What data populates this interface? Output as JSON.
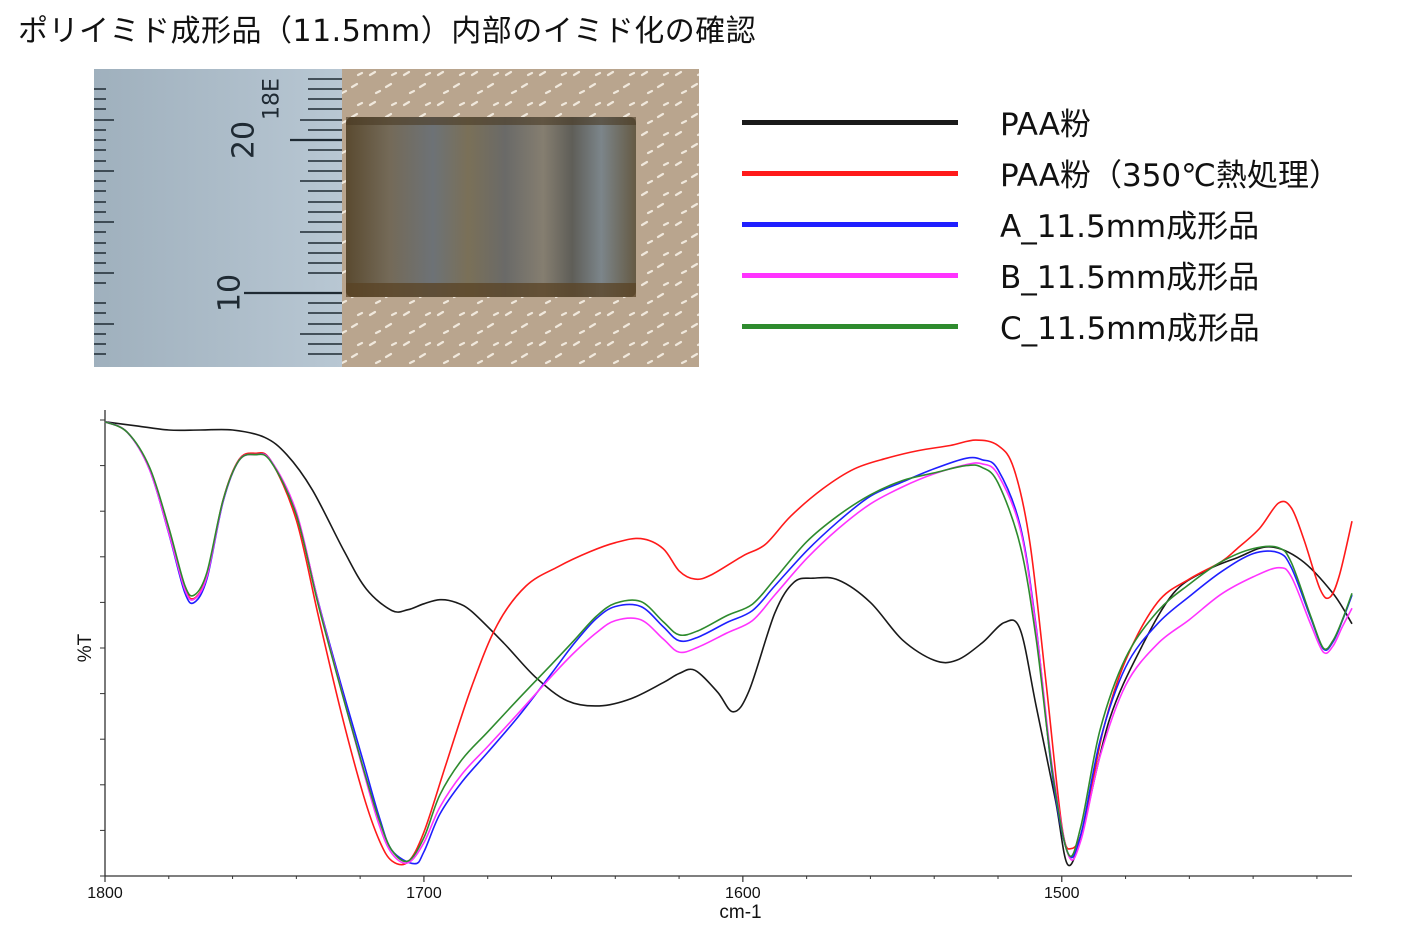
{
  "title": "ポリイミド成形品（11.5mm）内部のイミド化の確認",
  "photo": {
    "ruler_labels": [
      "20",
      "10"
    ],
    "ruler_mark": "18E"
  },
  "legend": [
    {
      "label": "PAA粉",
      "color": "#1a1a1a"
    },
    {
      "label": "PAA粉（350℃熱処理）",
      "color": "#ff1a1a"
    },
    {
      "label": "A_11.5mm成形品",
      "color": "#1f1fff"
    },
    {
      "label": "B_11.5mm成形品",
      "color": "#ff33ff"
    },
    {
      "label": "C_11.5mm成形品",
      "color": "#2e8b2e"
    }
  ],
  "chart_data": {
    "type": "line",
    "xlabel": "cm-1",
    "ylabel": "%T",
    "xlim": [
      1800,
      1409
    ],
    "ylim": [
      0,
      100
    ],
    "x_reversed": true,
    "x_ticks": [
      1800,
      1700,
      1600,
      1500
    ],
    "grid": false,
    "series": [
      {
        "name": "PAA粉",
        "color": "#1a1a1a",
        "points": [
          [
            1800,
            99.6
          ],
          [
            1790,
            98.7
          ],
          [
            1780,
            97.8
          ],
          [
            1770,
            97.8
          ],
          [
            1760,
            97.8
          ],
          [
            1750,
            96.2
          ],
          [
            1743,
            92.4
          ],
          [
            1735,
            84.7
          ],
          [
            1725,
            71.2
          ],
          [
            1718,
            62.9
          ],
          [
            1710,
            58.2
          ],
          [
            1705,
            58.4
          ],
          [
            1700,
            59.7
          ],
          [
            1695,
            60.6
          ],
          [
            1690,
            60.0
          ],
          [
            1685,
            58.0
          ],
          [
            1675,
            51.1
          ],
          [
            1665,
            43.6
          ],
          [
            1655,
            38.4
          ],
          [
            1645,
            37.3
          ],
          [
            1635,
            38.9
          ],
          [
            1625,
            42.4
          ],
          [
            1620,
            44.4
          ],
          [
            1615,
            45.1
          ],
          [
            1608,
            40.4
          ],
          [
            1603,
            36.0
          ],
          [
            1598,
            40.7
          ],
          [
            1590,
            57.6
          ],
          [
            1584,
            64.4
          ],
          [
            1578,
            65.3
          ],
          [
            1570,
            64.9
          ],
          [
            1560,
            60.0
          ],
          [
            1550,
            51.8
          ],
          [
            1540,
            47.3
          ],
          [
            1533,
            47.3
          ],
          [
            1525,
            51.1
          ],
          [
            1518,
            55.6
          ],
          [
            1513,
            54.0
          ],
          [
            1508,
            37.1
          ],
          [
            1502,
            16.7
          ],
          [
            1498,
            2.4
          ],
          [
            1493,
            11.6
          ],
          [
            1485,
            34.4
          ],
          [
            1475,
            50.2
          ],
          [
            1465,
            62.0
          ],
          [
            1455,
            66.9
          ],
          [
            1445,
            69.8
          ],
          [
            1435,
            72.2
          ],
          [
            1425,
            69.3
          ],
          [
            1415,
            62.0
          ],
          [
            1409,
            55.3
          ]
        ]
      },
      {
        "name": "PAA粉（350℃熱処理）",
        "color": "#ff1a1a",
        "points": [
          [
            1800,
            99.6
          ],
          [
            1793,
            97.3
          ],
          [
            1786,
            89.3
          ],
          [
            1780,
            76.2
          ],
          [
            1775,
            63.3
          ],
          [
            1772,
            60.9
          ],
          [
            1768,
            66.0
          ],
          [
            1763,
            82.4
          ],
          [
            1758,
            91.3
          ],
          [
            1753,
            92.7
          ],
          [
            1748,
            91.1
          ],
          [
            1740,
            78.0
          ],
          [
            1733,
            56.7
          ],
          [
            1726,
            36.0
          ],
          [
            1719,
            17.8
          ],
          [
            1714,
            7.8
          ],
          [
            1710,
            3.3
          ],
          [
            1705,
            3.1
          ],
          [
            1700,
            9.6
          ],
          [
            1693,
            24.7
          ],
          [
            1685,
            41.6
          ],
          [
            1677,
            55.1
          ],
          [
            1668,
            63.6
          ],
          [
            1658,
            67.8
          ],
          [
            1648,
            71.1
          ],
          [
            1640,
            73.1
          ],
          [
            1632,
            74.0
          ],
          [
            1625,
            71.8
          ],
          [
            1620,
            66.9
          ],
          [
            1615,
            65.1
          ],
          [
            1610,
            66.0
          ],
          [
            1600,
            70.2
          ],
          [
            1593,
            72.7
          ],
          [
            1585,
            78.9
          ],
          [
            1575,
            84.9
          ],
          [
            1565,
            89.3
          ],
          [
            1555,
            91.6
          ],
          [
            1545,
            93.3
          ],
          [
            1535,
            94.4
          ],
          [
            1527,
            95.6
          ],
          [
            1520,
            94.4
          ],
          [
            1515,
            89.3
          ],
          [
            1510,
            73.1
          ],
          [
            1505,
            42.9
          ],
          [
            1500,
            11.1
          ],
          [
            1497,
            6.0
          ],
          [
            1493,
            11.3
          ],
          [
            1487,
            32.0
          ],
          [
            1480,
            47.3
          ],
          [
            1470,
            60.0
          ],
          [
            1460,
            65.1
          ],
          [
            1450,
            68.9
          ],
          [
            1445,
            71.8
          ],
          [
            1438,
            76.2
          ],
          [
            1432,
            81.8
          ],
          [
            1428,
            80.7
          ],
          [
            1424,
            73.6
          ],
          [
            1419,
            62.9
          ],
          [
            1416,
            61.1
          ],
          [
            1413,
            65.8
          ],
          [
            1409,
            77.8
          ]
        ]
      },
      {
        "name": "A_11.5mm成形品",
        "color": "#1f1fff",
        "points": [
          [
            1800,
            99.6
          ],
          [
            1793,
            97.3
          ],
          [
            1786,
            89.1
          ],
          [
            1780,
            75.1
          ],
          [
            1775,
            62.2
          ],
          [
            1772,
            60.0
          ],
          [
            1768,
            65.3
          ],
          [
            1763,
            82.0
          ],
          [
            1758,
            91.1
          ],
          [
            1753,
            92.4
          ],
          [
            1748,
            91.1
          ],
          [
            1740,
            79.3
          ],
          [
            1733,
            59.8
          ],
          [
            1726,
            42.0
          ],
          [
            1719,
            25.1
          ],
          [
            1714,
            12.9
          ],
          [
            1710,
            5.6
          ],
          [
            1703,
            2.7
          ],
          [
            1700,
            5.3
          ],
          [
            1695,
            13.6
          ],
          [
            1688,
            20.7
          ],
          [
            1680,
            27.1
          ],
          [
            1670,
            35.3
          ],
          [
            1660,
            44.4
          ],
          [
            1653,
            50.9
          ],
          [
            1646,
            56.4
          ],
          [
            1640,
            59.1
          ],
          [
            1632,
            59.1
          ],
          [
            1625,
            54.7
          ],
          [
            1620,
            51.6
          ],
          [
            1614,
            52.4
          ],
          [
            1605,
            55.6
          ],
          [
            1597,
            58.2
          ],
          [
            1590,
            63.6
          ],
          [
            1580,
            71.3
          ],
          [
            1570,
            77.8
          ],
          [
            1560,
            83.3
          ],
          [
            1550,
            86.4
          ],
          [
            1540,
            89.3
          ],
          [
            1530,
            91.6
          ],
          [
            1525,
            91.3
          ],
          [
            1520,
            89.1
          ],
          [
            1513,
            76.7
          ],
          [
            1508,
            54.4
          ],
          [
            1503,
            22.4
          ],
          [
            1498,
            4.9
          ],
          [
            1494,
            9.1
          ],
          [
            1488,
            29.6
          ],
          [
            1480,
            45.8
          ],
          [
            1470,
            55.3
          ],
          [
            1460,
            61.3
          ],
          [
            1450,
            66.7
          ],
          [
            1440,
            70.7
          ],
          [
            1432,
            70.9
          ],
          [
            1428,
            67.6
          ],
          [
            1422,
            56.7
          ],
          [
            1418,
            49.8
          ],
          [
            1415,
            51.3
          ],
          [
            1412,
            56.0
          ],
          [
            1409,
            61.6
          ]
        ]
      },
      {
        "name": "B_11.5mm成形品",
        "color": "#ff33ff",
        "points": [
          [
            1800,
            99.6
          ],
          [
            1793,
            97.3
          ],
          [
            1786,
            89.1
          ],
          [
            1780,
            75.3
          ],
          [
            1775,
            62.9
          ],
          [
            1772,
            60.7
          ],
          [
            1768,
            65.8
          ],
          [
            1763,
            82.2
          ],
          [
            1758,
            91.1
          ],
          [
            1753,
            92.4
          ],
          [
            1748,
            91.1
          ],
          [
            1740,
            79.8
          ],
          [
            1733,
            59.6
          ],
          [
            1726,
            41.1
          ],
          [
            1719,
            23.1
          ],
          [
            1714,
            11.1
          ],
          [
            1710,
            4.9
          ],
          [
            1705,
            2.9
          ],
          [
            1700,
            7.3
          ],
          [
            1695,
            15.1
          ],
          [
            1688,
            22.4
          ],
          [
            1680,
            28.4
          ],
          [
            1670,
            36.0
          ],
          [
            1660,
            43.8
          ],
          [
            1653,
            48.9
          ],
          [
            1646,
            53.3
          ],
          [
            1640,
            56.0
          ],
          [
            1632,
            56.2
          ],
          [
            1625,
            52.0
          ],
          [
            1620,
            49.1
          ],
          [
            1614,
            50.2
          ],
          [
            1605,
            53.3
          ],
          [
            1597,
            56.0
          ],
          [
            1590,
            61.6
          ],
          [
            1580,
            69.6
          ],
          [
            1570,
            76.2
          ],
          [
            1560,
            81.6
          ],
          [
            1550,
            85.3
          ],
          [
            1540,
            88.2
          ],
          [
            1530,
            90.2
          ],
          [
            1525,
            90.4
          ],
          [
            1520,
            88.0
          ],
          [
            1513,
            76.0
          ],
          [
            1508,
            54.0
          ],
          [
            1503,
            24.0
          ],
          [
            1498,
            4.7
          ],
          [
            1494,
            7.8
          ],
          [
            1488,
            26.2
          ],
          [
            1480,
            41.8
          ],
          [
            1470,
            50.9
          ],
          [
            1460,
            56.2
          ],
          [
            1450,
            61.8
          ],
          [
            1440,
            65.6
          ],
          [
            1432,
            67.6
          ],
          [
            1428,
            65.6
          ],
          [
            1422,
            55.3
          ],
          [
            1418,
            49.1
          ],
          [
            1415,
            50.4
          ],
          [
            1412,
            54.7
          ],
          [
            1409,
            58.7
          ]
        ]
      },
      {
        "name": "C_11.5mm成形品",
        "color": "#2e8b2e",
        "points": [
          [
            1800,
            99.6
          ],
          [
            1793,
            97.3
          ],
          [
            1786,
            89.6
          ],
          [
            1780,
            76.4
          ],
          [
            1775,
            63.8
          ],
          [
            1772,
            61.6
          ],
          [
            1768,
            66.7
          ],
          [
            1763,
            82.4
          ],
          [
            1758,
            91.1
          ],
          [
            1753,
            92.4
          ],
          [
            1748,
            90.9
          ],
          [
            1740,
            79.1
          ],
          [
            1733,
            59.1
          ],
          [
            1726,
            40.9
          ],
          [
            1719,
            23.6
          ],
          [
            1714,
            12.2
          ],
          [
            1710,
            5.6
          ],
          [
            1705,
            3.3
          ],
          [
            1700,
            8.4
          ],
          [
            1695,
            17.8
          ],
          [
            1688,
            25.6
          ],
          [
            1680,
            31.6
          ],
          [
            1670,
            39.1
          ],
          [
            1660,
            46.4
          ],
          [
            1653,
            51.6
          ],
          [
            1646,
            56.9
          ],
          [
            1640,
            59.8
          ],
          [
            1632,
            60.2
          ],
          [
            1625,
            55.8
          ],
          [
            1620,
            52.9
          ],
          [
            1614,
            53.8
          ],
          [
            1605,
            57.1
          ],
          [
            1597,
            59.6
          ],
          [
            1590,
            65.1
          ],
          [
            1580,
            73.3
          ],
          [
            1570,
            79.1
          ],
          [
            1560,
            83.6
          ],
          [
            1550,
            86.7
          ],
          [
            1540,
            88.4
          ],
          [
            1530,
            90.0
          ],
          [
            1525,
            89.6
          ],
          [
            1520,
            86.2
          ],
          [
            1513,
            72.4
          ],
          [
            1508,
            51.8
          ],
          [
            1503,
            23.1
          ],
          [
            1498,
            4.9
          ],
          [
            1494,
            10.9
          ],
          [
            1488,
            32.0
          ],
          [
            1480,
            47.8
          ],
          [
            1470,
            58.0
          ],
          [
            1460,
            64.0
          ],
          [
            1450,
            68.9
          ],
          [
            1440,
            71.8
          ],
          [
            1432,
            72.0
          ],
          [
            1428,
            68.7
          ],
          [
            1422,
            57.1
          ],
          [
            1418,
            50.0
          ],
          [
            1415,
            51.6
          ],
          [
            1412,
            56.2
          ],
          [
            1409,
            62.0
          ]
        ]
      }
    ]
  }
}
